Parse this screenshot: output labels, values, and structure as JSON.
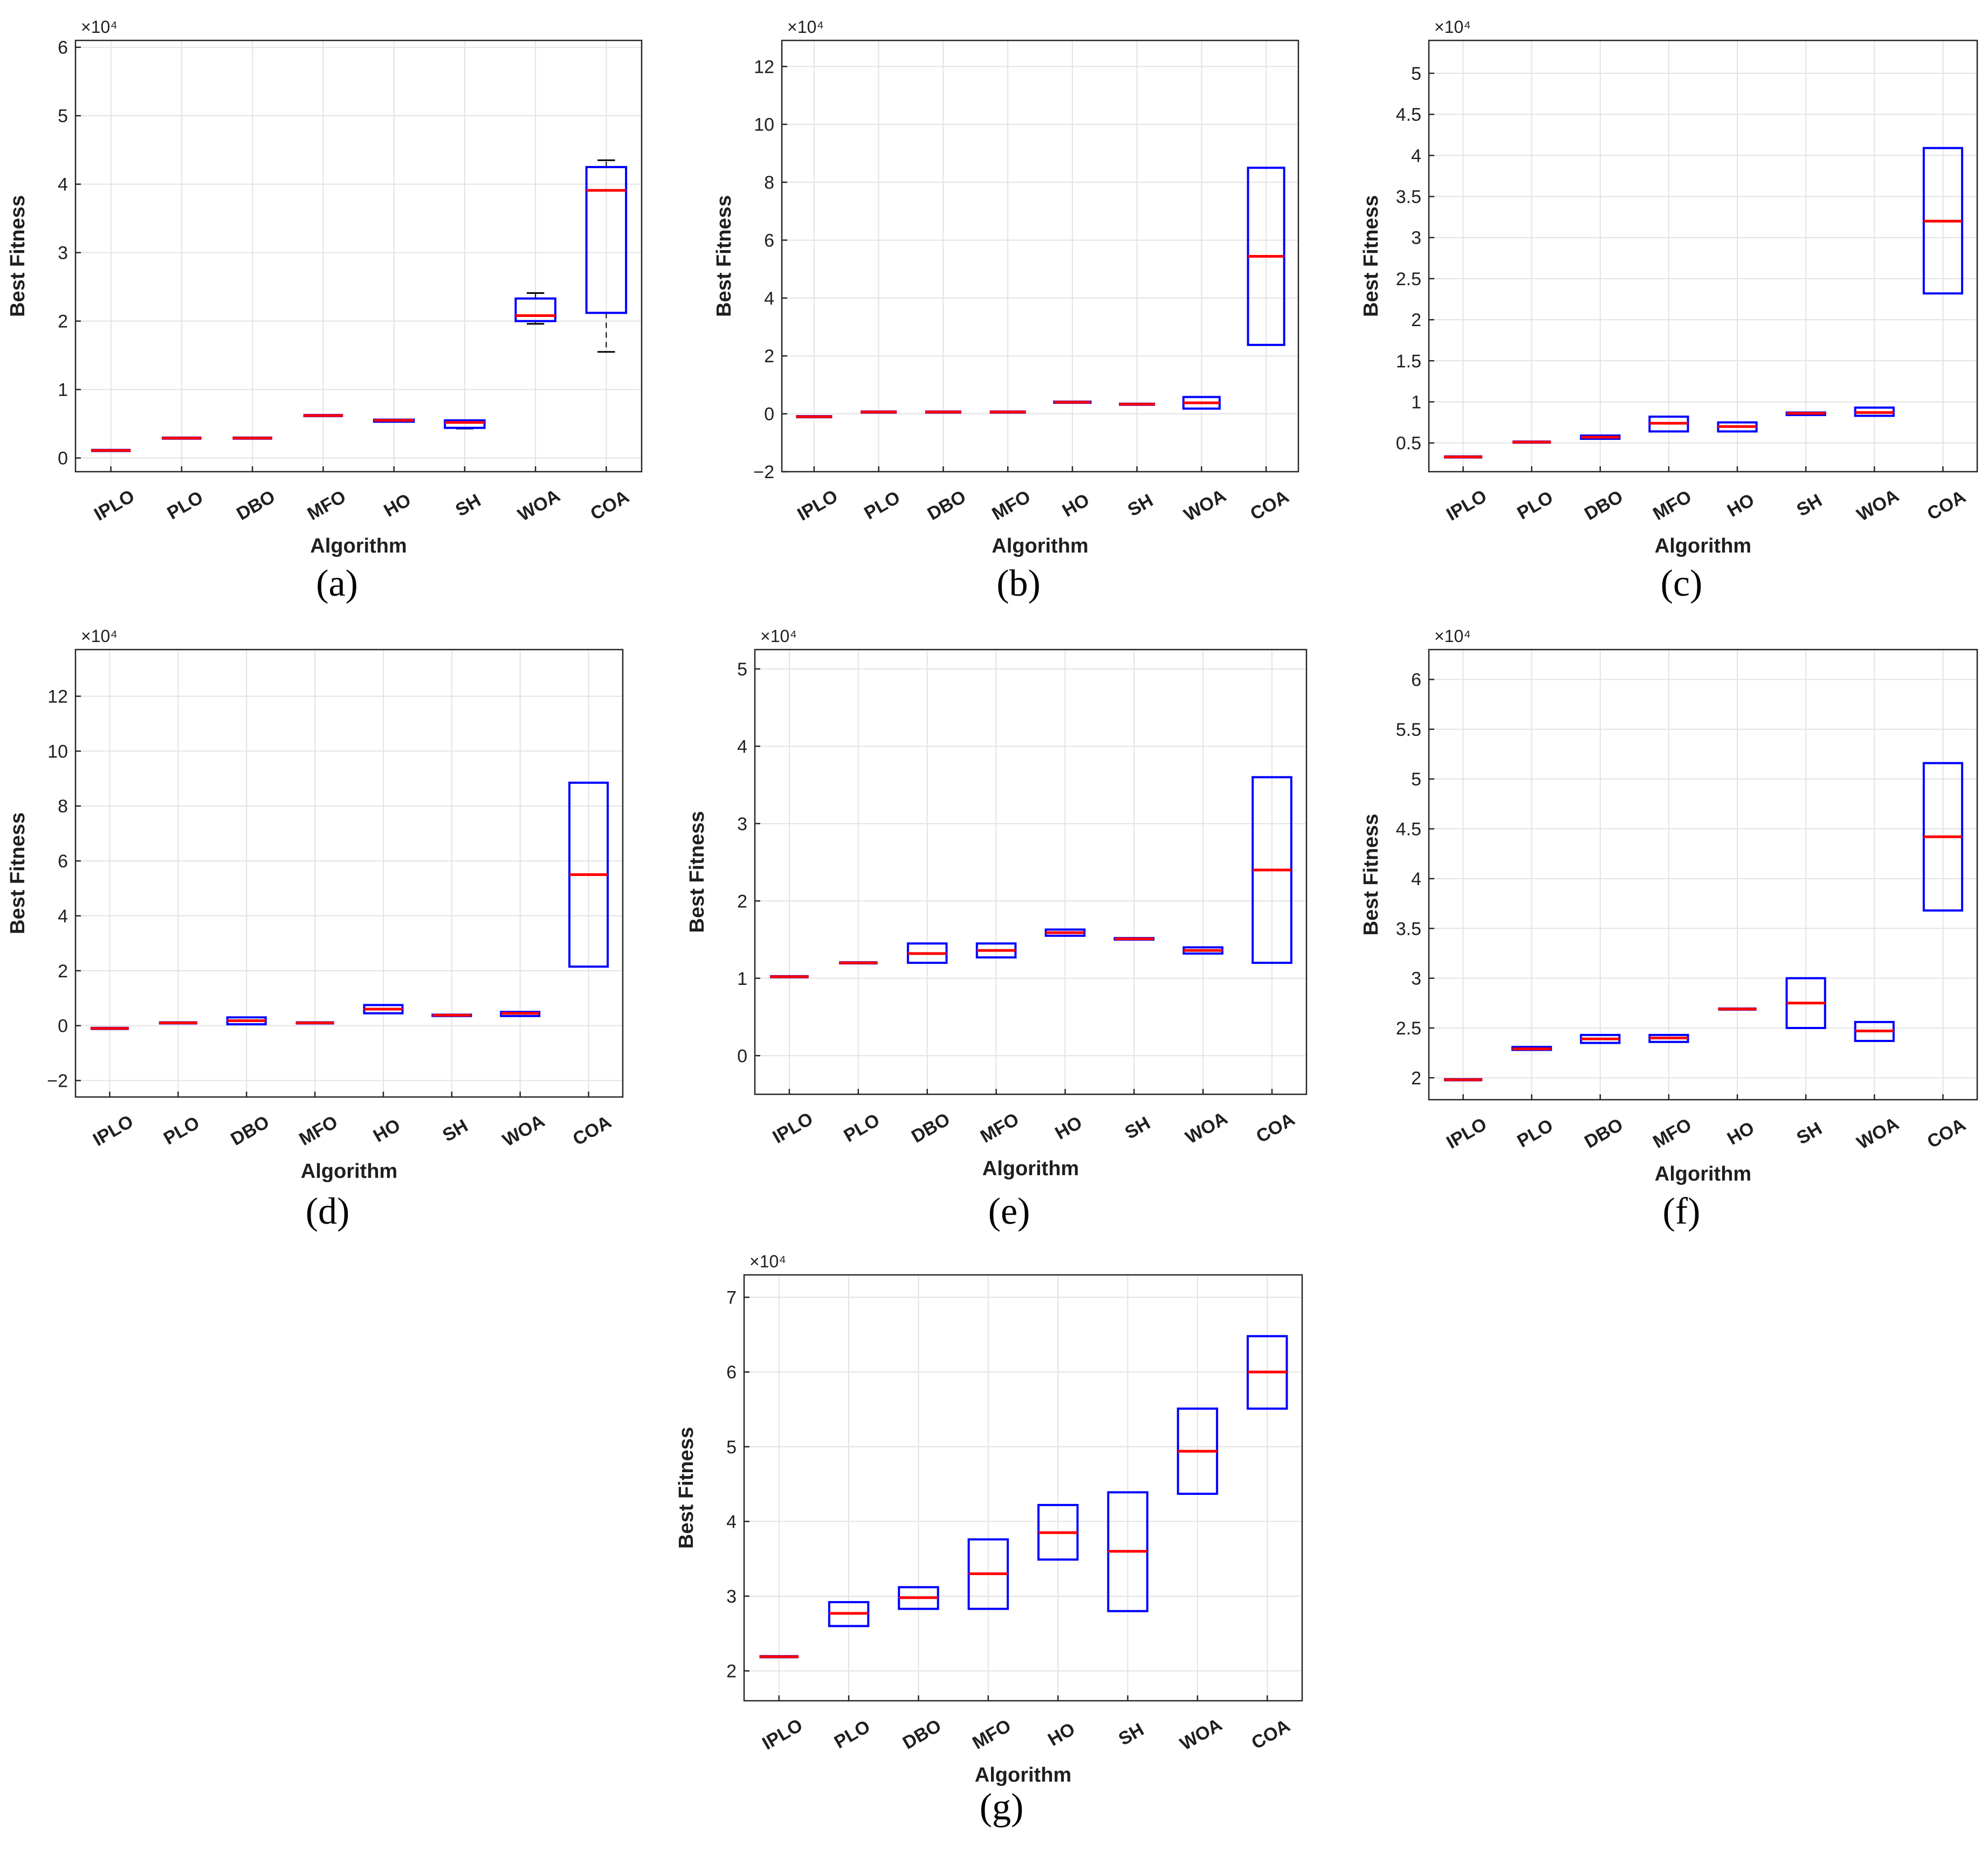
{
  "figure": {
    "colors": {
      "box": "#0000ff",
      "median": "#ff0000",
      "whisker": "#000000",
      "grid": "#e3e3e3",
      "axis": "#262626",
      "text": "#1f1f1f"
    }
  },
  "chart_data": [
    {
      "panel": "a",
      "caption": "(a)",
      "type": "box",
      "xlabel": "Algorithm",
      "ylabel": "Best Fitness",
      "exponent_label": "×10⁴",
      "categories": [
        "IPLO",
        "PLO",
        "DBO",
        "MFO",
        "HO",
        "SH",
        "WOA",
        "COA"
      ],
      "ylim": [
        -0.2,
        6.1
      ],
      "yticks": [
        0,
        1,
        2,
        3,
        4,
        5,
        6
      ],
      "ytick_labels": [
        "0",
        "1",
        "2",
        "3",
        "4",
        "5",
        "6"
      ],
      "boxes": [
        {
          "q1": 0.11,
          "median": 0.11,
          "q3": 0.11
        },
        {
          "q1": 0.29,
          "median": 0.29,
          "q3": 0.29
        },
        {
          "q1": 0.29,
          "median": 0.29,
          "q3": 0.29
        },
        {
          "q1": 0.62,
          "median": 0.62,
          "q3": 0.62
        },
        {
          "q1": 0.53,
          "median": 0.55,
          "q3": 0.56
        },
        {
          "q1": 0.44,
          "median": 0.52,
          "q3": 0.55,
          "whisker_low": 0.43,
          "whisker_high": 0.55
        },
        {
          "q1": 2.0,
          "median": 2.08,
          "q3": 2.33,
          "whisker_low": 1.96,
          "whisker_high": 2.41
        },
        {
          "q1": 2.12,
          "median": 3.91,
          "q3": 4.25,
          "whisker_low": 1.55,
          "whisker_high": 4.35
        }
      ]
    },
    {
      "panel": "b",
      "caption": "(b)",
      "type": "box",
      "xlabel": "Algorithm",
      "ylabel": "Best Fitness",
      "exponent_label": "×10⁴",
      "categories": [
        "IPLO",
        "PLO",
        "DBO",
        "MFO",
        "HO",
        "SH",
        "WOA",
        "COA"
      ],
      "ylim": [
        -2,
        12.9
      ],
      "yticks": [
        -2,
        0,
        2,
        4,
        6,
        8,
        10,
        12
      ],
      "ytick_labels": [
        "−2",
        "0",
        "2",
        "4",
        "6",
        "8",
        "10",
        "12"
      ],
      "boxes": [
        {
          "q1": -0.1,
          "median": -0.1,
          "q3": -0.1
        },
        {
          "q1": 0.06,
          "median": 0.06,
          "q3": 0.06
        },
        {
          "q1": 0.06,
          "median": 0.06,
          "q3": 0.06
        },
        {
          "q1": 0.06,
          "median": 0.06,
          "q3": 0.06
        },
        {
          "q1": 0.38,
          "median": 0.4,
          "q3": 0.42
        },
        {
          "q1": 0.33,
          "median": 0.33,
          "q3": 0.33
        },
        {
          "q1": 0.18,
          "median": 0.38,
          "q3": 0.58
        },
        {
          "q1": 2.38,
          "median": 5.44,
          "q3": 8.5
        }
      ]
    },
    {
      "panel": "c",
      "caption": "(c)",
      "type": "box",
      "xlabel": "Algorithm",
      "ylabel": "Best Fitness",
      "exponent_label": "×10⁴",
      "categories": [
        "IPLO",
        "PLO",
        "DBO",
        "MFO",
        "HO",
        "SH",
        "WOA",
        "COA"
      ],
      "ylim": [
        0.15,
        5.4
      ],
      "yticks": [
        0.5,
        1,
        1.5,
        2,
        2.5,
        3,
        3.5,
        4,
        4.5,
        5
      ],
      "ytick_labels": [
        "0.5",
        "1",
        "1.5",
        "2",
        "2.5",
        "3",
        "3.5",
        "4",
        "4.5",
        "5"
      ],
      "boxes": [
        {
          "q1": 0.33,
          "median": 0.33,
          "q3": 0.33
        },
        {
          "q1": 0.51,
          "median": 0.51,
          "q3": 0.51
        },
        {
          "q1": 0.55,
          "median": 0.57,
          "q3": 0.59
        },
        {
          "q1": 0.64,
          "median": 0.74,
          "q3": 0.82
        },
        {
          "q1": 0.64,
          "median": 0.7,
          "q3": 0.75
        },
        {
          "q1": 0.84,
          "median": 0.86,
          "q3": 0.87
        },
        {
          "q1": 0.83,
          "median": 0.87,
          "q3": 0.93
        },
        {
          "q1": 2.32,
          "median": 3.2,
          "q3": 4.09
        }
      ]
    },
    {
      "panel": "d",
      "caption": "(d)",
      "type": "box",
      "xlabel": "Algorithm",
      "ylabel": "Best Fitness",
      "exponent_label": "×10⁴",
      "categories": [
        "IPLO",
        "PLO",
        "DBO",
        "MFO",
        "HO",
        "SH",
        "WOA",
        "COA"
      ],
      "ylim": [
        -2.6,
        13.7
      ],
      "yticks": [
        -2,
        0,
        2,
        4,
        6,
        8,
        10,
        12
      ],
      "ytick_labels": [
        "−2",
        "0",
        "2",
        "4",
        "6",
        "8",
        "10",
        "12"
      ],
      "boxes": [
        {
          "q1": -0.1,
          "median": -0.1,
          "q3": -0.1
        },
        {
          "q1": 0.1,
          "median": 0.1,
          "q3": 0.1
        },
        {
          "q1": 0.05,
          "median": 0.18,
          "q3": 0.3
        },
        {
          "q1": 0.1,
          "median": 0.1,
          "q3": 0.1
        },
        {
          "q1": 0.45,
          "median": 0.6,
          "q3": 0.75
        },
        {
          "q1": 0.35,
          "median": 0.38,
          "q3": 0.4
        },
        {
          "q1": 0.35,
          "median": 0.45,
          "q3": 0.5
        },
        {
          "q1": 2.15,
          "median": 5.5,
          "q3": 8.85
        }
      ]
    },
    {
      "panel": "e",
      "caption": "(e)",
      "type": "box",
      "xlabel": "Algorithm",
      "ylabel": "Best Fitness",
      "exponent_label": "×10⁴",
      "categories": [
        "IPLO",
        "PLO",
        "DBO",
        "MFO",
        "HO",
        "SH",
        "WOA",
        "COA"
      ],
      "ylim": [
        -0.5,
        5.25
      ],
      "yticks": [
        0,
        1,
        2,
        3,
        4,
        5
      ],
      "ytick_labels": [
        "0",
        "1",
        "2",
        "3",
        "4",
        "5"
      ],
      "boxes": [
        {
          "q1": 1.02,
          "median": 1.02,
          "q3": 1.02
        },
        {
          "q1": 1.2,
          "median": 1.2,
          "q3": 1.2
        },
        {
          "q1": 1.2,
          "median": 1.32,
          "q3": 1.45
        },
        {
          "q1": 1.27,
          "median": 1.36,
          "q3": 1.45
        },
        {
          "q1": 1.55,
          "median": 1.59,
          "q3": 1.63
        },
        {
          "q1": 1.5,
          "median": 1.51,
          "q3": 1.52
        },
        {
          "q1": 1.32,
          "median": 1.36,
          "q3": 1.4
        },
        {
          "q1": 1.2,
          "median": 2.4,
          "q3": 3.6
        }
      ]
    },
    {
      "panel": "f",
      "caption": "(f)",
      "type": "box",
      "xlabel": "Algorithm",
      "ylabel": "Best Fitness",
      "exponent_label": "×10⁴",
      "categories": [
        "IPLO",
        "PLO",
        "DBO",
        "MFO",
        "HO",
        "SH",
        "WOA",
        "COA"
      ],
      "ylim": [
        1.78,
        6.3
      ],
      "yticks": [
        2,
        2.5,
        3,
        3.5,
        4,
        4.5,
        5,
        5.5,
        6
      ],
      "ytick_labels": [
        "2",
        "2.5",
        "3",
        "3.5",
        "4",
        "4.5",
        "5",
        "5.5",
        "6"
      ],
      "boxes": [
        {
          "q1": 1.98,
          "median": 1.98,
          "q3": 1.98
        },
        {
          "q1": 2.28,
          "median": 2.29,
          "q3": 2.31
        },
        {
          "q1": 2.35,
          "median": 2.39,
          "q3": 2.43
        },
        {
          "q1": 2.36,
          "median": 2.4,
          "q3": 2.43
        },
        {
          "q1": 2.69,
          "median": 2.69,
          "q3": 2.69
        },
        {
          "q1": 2.5,
          "median": 2.75,
          "q3": 3.0
        },
        {
          "q1": 2.37,
          "median": 2.47,
          "q3": 2.56
        },
        {
          "q1": 3.68,
          "median": 4.42,
          "q3": 5.16
        }
      ]
    },
    {
      "panel": "g",
      "caption": "(g)",
      "type": "box",
      "xlabel": "Algorithm",
      "ylabel": "Best Fitness",
      "exponent_label": "×10⁴",
      "categories": [
        "IPLO",
        "PLO",
        "DBO",
        "MFO",
        "HO",
        "SH",
        "WOA",
        "COA"
      ],
      "ylim": [
        1.6,
        7.3
      ],
      "yticks": [
        2,
        3,
        4,
        5,
        6,
        7
      ],
      "ytick_labels": [
        "2",
        "3",
        "4",
        "5",
        "6",
        "7"
      ],
      "boxes": [
        {
          "q1": 2.19,
          "median": 2.19,
          "q3": 2.19
        },
        {
          "q1": 2.6,
          "median": 2.77,
          "q3": 2.92
        },
        {
          "q1": 2.83,
          "median": 2.98,
          "q3": 3.12
        },
        {
          "q1": 2.83,
          "median": 3.3,
          "q3": 3.76
        },
        {
          "q1": 3.49,
          "median": 3.85,
          "q3": 4.22
        },
        {
          "q1": 2.8,
          "median": 3.6,
          "q3": 4.39
        },
        {
          "q1": 4.37,
          "median": 4.94,
          "q3": 5.51
        },
        {
          "q1": 5.51,
          "median": 6.0,
          "q3": 6.48
        }
      ]
    }
  ]
}
